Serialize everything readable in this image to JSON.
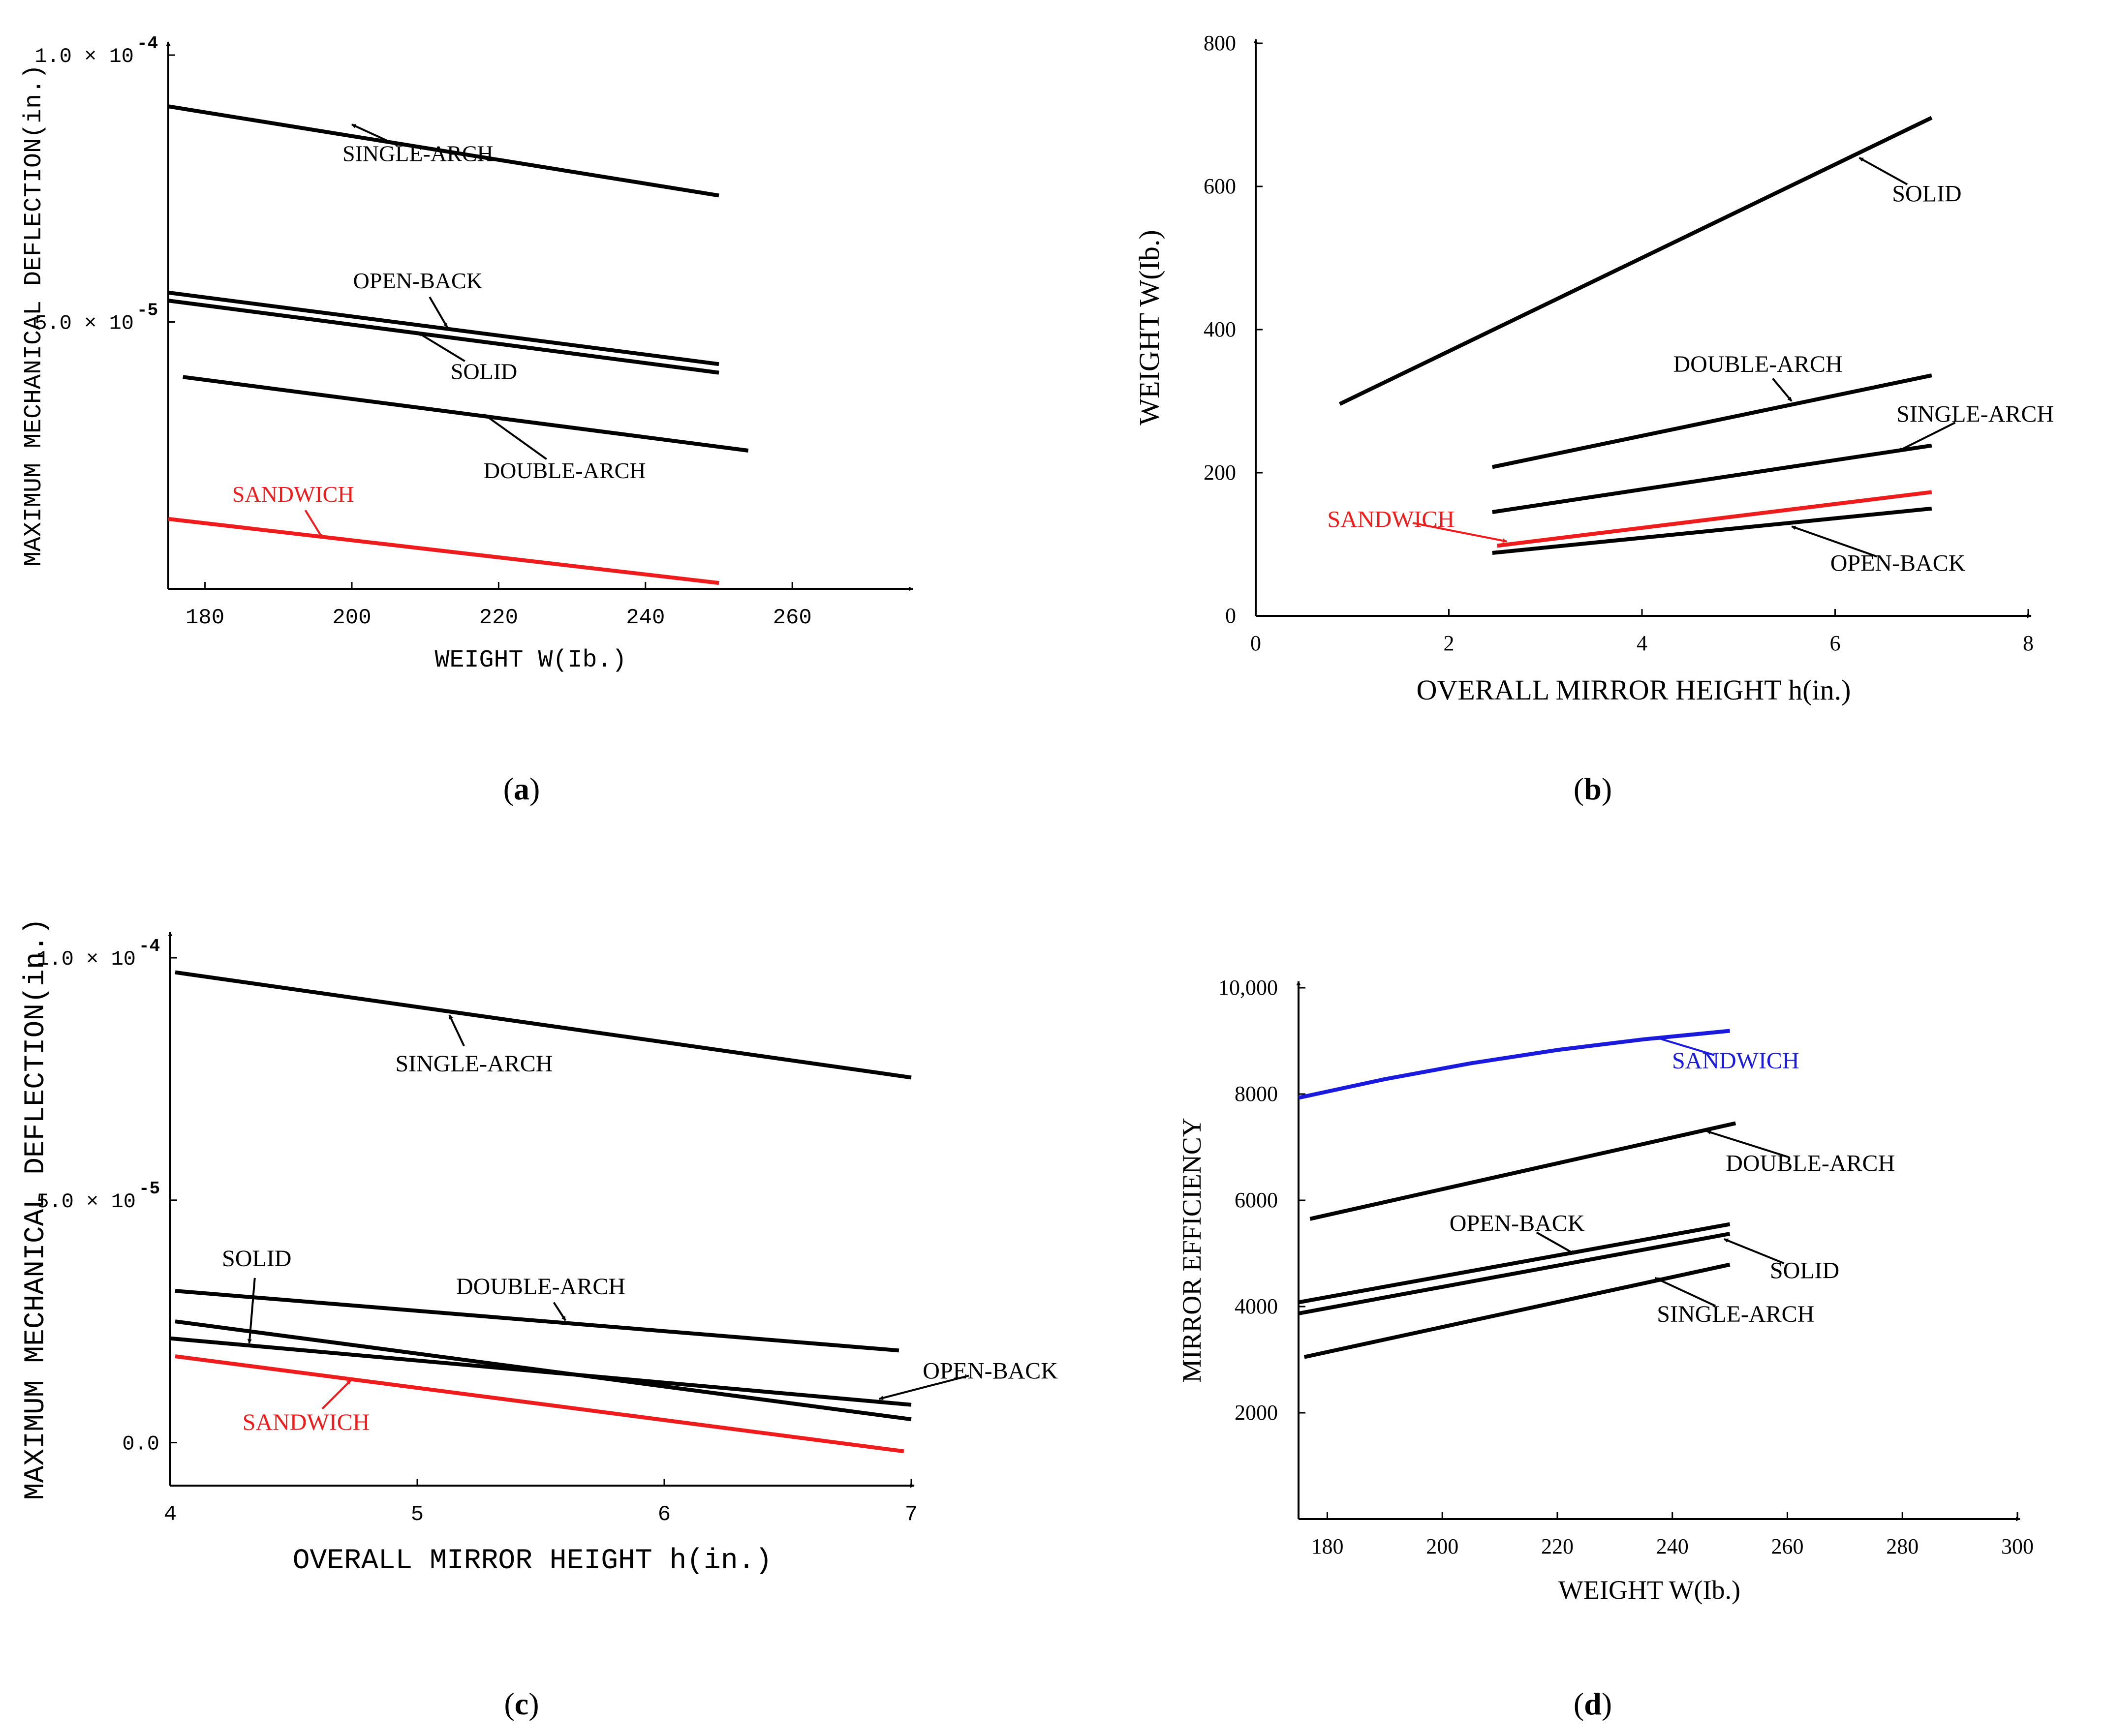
{
  "figure": {
    "panel_labels": [
      "a",
      "b",
      "c",
      "d"
    ]
  },
  "colors": {
    "axis": "#000000",
    "black_series": "#000000",
    "sandwich_red": "#ee1c1c",
    "sandwich_blue": "#1a1adf"
  },
  "chart_data": [
    {
      "id": "a",
      "type": "line",
      "title": "",
      "xlabel": "WEIGHT W(Ib.)",
      "ylabel": "MAXIMUM MECHANICAL DEFLECTION(in.)",
      "xlim": [
        175,
        275
      ],
      "ylim": [
        0.0,
        0.0001
      ],
      "xticks": [
        180,
        200,
        220,
        240,
        260
      ],
      "xtick_labels": [
        "180",
        "200",
        "220",
        "240",
        "260"
      ],
      "yticks": [
        5e-05,
        0.0001
      ],
      "ytick_labels": [
        "5.0 × 10",
        "1.0 × 10"
      ],
      "ytick_exponents": [
        "-5",
        "-4"
      ],
      "series": [
        {
          "name": "SINGLE-ARCH",
          "color": "black",
          "x": [
            175,
            250
          ],
          "y": [
            9.04e-05,
            7.37e-05
          ]
        },
        {
          "name": "OPEN-BACK",
          "color": "black",
          "x": [
            175,
            250
          ],
          "y": [
            5.55e-05,
            4.21e-05
          ]
        },
        {
          "name": "SOLID",
          "color": "black",
          "x": [
            175,
            250
          ],
          "y": [
            5.4e-05,
            4.05e-05
          ]
        },
        {
          "name": "DOUBLE-ARCH",
          "color": "black",
          "x": [
            177,
            254
          ],
          "y": [
            3.97e-05,
            2.59e-05
          ]
        },
        {
          "name": "SANDWICH",
          "color": "red",
          "x": [
            175,
            250
          ],
          "y": [
            1.31e-05,
            1.1e-06
          ]
        }
      ],
      "annotations": [
        {
          "text": "SINGLE-ARCH",
          "series": "SINGLE-ARCH",
          "arrow_x": 200,
          "arrow_y": 8.7e-05,
          "label_x": 209,
          "label_y": 8.16e-05
        },
        {
          "text": "OPEN-BACK",
          "series": "OPEN-BACK",
          "arrow_x": 213,
          "arrow_y": 4.9e-05,
          "label_x": 209,
          "label_y": 5.78e-05
        },
        {
          "text": "SOLID",
          "series": "SOLID",
          "arrow_x": 209,
          "arrow_y": 4.8e-05,
          "label_x": 218,
          "label_y": 4.08e-05
        },
        {
          "text": "DOUBLE-ARCH",
          "series": "DOUBLE-ARCH",
          "arrow_x": 218,
          "arrow_y": 3.27e-05,
          "label_x": 229,
          "label_y": 2.22e-05
        },
        {
          "text": "SANDWICH",
          "series": "SANDWICH",
          "color": "red",
          "arrow_x": 196,
          "arrow_y": 9.5e-06,
          "label_x": 192,
          "label_y": 1.78e-05
        }
      ]
    },
    {
      "id": "b",
      "type": "line",
      "title": "",
      "xlabel": "OVERALL MIRROR HEIGHT h(in.)",
      "ylabel": "WEIGHT W(Ib.)",
      "xlim": [
        0,
        8
      ],
      "ylim": [
        0,
        800
      ],
      "xticks": [
        0,
        2,
        4,
        6,
        8
      ],
      "xtick_labels": [
        "0",
        "2",
        "4",
        "6",
        "8"
      ],
      "yticks": [
        0,
        200,
        400,
        600,
        800
      ],
      "ytick_labels": [
        "0",
        "200",
        "400",
        "600",
        "800"
      ],
      "series": [
        {
          "name": "SOLID",
          "color": "black",
          "x": [
            0.87,
            7.0
          ],
          "y": [
            296,
            696
          ]
        },
        {
          "name": "DOUBLE-ARCH",
          "color": "black",
          "x": [
            2.45,
            7.0
          ],
          "y": [
            208,
            336
          ]
        },
        {
          "name": "SINGLE-ARCH",
          "color": "black",
          "x": [
            2.45,
            7.0
          ],
          "y": [
            145,
            238
          ]
        },
        {
          "name": "SANDWICH",
          "color": "red",
          "x": [
            2.5,
            7.0
          ],
          "y": [
            98,
            173
          ]
        },
        {
          "name": "OPEN-BACK",
          "color": "black",
          "x": [
            2.45,
            7.0
          ],
          "y": [
            88,
            150
          ]
        }
      ],
      "annotations": [
        {
          "text": "SOLID",
          "series": "SOLID",
          "arrow_x": 6.25,
          "arrow_y": 640,
          "label_x": 6.95,
          "label_y": 590
        },
        {
          "text": "DOUBLE-ARCH",
          "series": "DOUBLE-ARCH",
          "arrow_x": 5.55,
          "arrow_y": 300,
          "label_x": 5.2,
          "label_y": 352
        },
        {
          "text": "SINGLE-ARCH",
          "series": "SINGLE-ARCH",
          "arrow_x": 6.65,
          "arrow_y": 230,
          "label_x": 7.45,
          "label_y": 282
        },
        {
          "text": "SANDWICH",
          "series": "SANDWICH",
          "color": "red",
          "arrow_x": 2.6,
          "arrow_y": 104,
          "label_x": 1.4,
          "label_y": 135
        },
        {
          "text": "OPEN-BACK",
          "series": "OPEN-BACK",
          "arrow_x": 5.55,
          "arrow_y": 125,
          "label_x": 6.65,
          "label_y": 74
        }
      ]
    },
    {
      "id": "c",
      "type": "line",
      "title": "",
      "xlabel": "OVERALL MIRROR HEIGHT h(in.)",
      "ylabel": "MAXIMUM MECHANICAL DEFLECTION(in.)",
      "xlim": [
        4,
        7
      ],
      "ylim": [
        -3.8e-06,
        0.0001
      ],
      "xticks": [
        4,
        5,
        6,
        7
      ],
      "xtick_labels": [
        "4",
        "5",
        "6",
        "7"
      ],
      "yticks": [
        0.0,
        5e-05,
        0.0001
      ],
      "ytick_labels": [
        "0.0",
        "5.0 × 10",
        "1.0 × 10"
      ],
      "ytick_exponents": [
        "",
        "-5",
        "-4"
      ],
      "series": [
        {
          "name": "SINGLE-ARCH",
          "color": "black",
          "x": [
            4.02,
            7.0
          ],
          "y": [
            9.7e-05,
            7.53e-05
          ]
        },
        {
          "name": "DOUBLE-ARCH",
          "color": "black",
          "x": [
            4.02,
            6.95
          ],
          "y": [
            3.13e-05,
            1.9e-05
          ]
        },
        {
          "name": "SOLID",
          "color": "black",
          "x": [
            4.02,
            7.0
          ],
          "y": [
            2.5e-05,
            4.8e-06
          ]
        },
        {
          "name": "OPEN-BACK",
          "color": "black",
          "x": [
            4.0,
            7.0
          ],
          "y": [
            2.15e-05,
            7.8e-06
          ]
        },
        {
          "name": "SANDWICH",
          "color": "red",
          "x": [
            4.02,
            6.97
          ],
          "y": [
            1.78e-05,
            -1.8e-06
          ]
        }
      ],
      "annotations": [
        {
          "text": "SINGLE-ARCH",
          "series": "SINGLE-ARCH",
          "arrow_x": 5.13,
          "arrow_y": 8.82e-05,
          "label_x": 5.23,
          "label_y": 7.82e-05
        },
        {
          "text": "DOUBLE-ARCH",
          "series": "DOUBLE-ARCH",
          "arrow_x": 5.6,
          "arrow_y": 2.52e-05,
          "label_x": 5.5,
          "label_y": 3.22e-05
        },
        {
          "text": "SOLID",
          "series": "SOLID",
          "arrow_x": 4.32,
          "arrow_y": 2.05e-05,
          "label_x": 4.35,
          "label_y": 3.8e-05
        },
        {
          "text": "OPEN-BACK",
          "series": "OPEN-BACK",
          "arrow_x": 6.87,
          "arrow_y": 9e-06,
          "label_x": 7.32,
          "label_y": 1.48e-05
        },
        {
          "text": "SANDWICH",
          "series": "SANDWICH",
          "color": "red",
          "arrow_x": 4.73,
          "arrow_y": 1.28e-05,
          "label_x": 4.55,
          "label_y": 4.2e-06
        }
      ]
    },
    {
      "id": "d",
      "type": "line",
      "title": "",
      "xlabel": "WEIGHT W(Ib.)",
      "ylabel": "MIRROR EFFICIENCY",
      "xlim": [
        175,
        300
      ],
      "ylim": [
        0,
        10000
      ],
      "xticks": [
        180,
        200,
        220,
        240,
        260,
        280,
        300
      ],
      "xtick_labels": [
        "180",
        "200",
        "220",
        "240",
        "260",
        "280",
        "300"
      ],
      "yticks": [
        2000,
        4000,
        6000,
        8000,
        10000
      ],
      "ytick_labels": [
        "2000",
        "4000",
        "6000",
        "8000",
        "10,000"
      ],
      "series": [
        {
          "name": "SANDWICH",
          "color": "blue",
          "x": [
            175,
            190,
            205,
            220,
            235,
            250
          ],
          "y": [
            7930,
            8280,
            8580,
            8830,
            9030,
            9190
          ]
        },
        {
          "name": "DOUBLE-ARCH",
          "color": "black",
          "x": [
            177,
            251
          ],
          "y": [
            5650,
            7450
          ]
        },
        {
          "name": "OPEN-BACK",
          "color": "black",
          "x": [
            175,
            250
          ],
          "y": [
            4080,
            5550
          ]
        },
        {
          "name": "SOLID",
          "color": "black",
          "x": [
            175,
            250
          ],
          "y": [
            3870,
            5370
          ]
        },
        {
          "name": "SINGLE-ARCH",
          "color": "black",
          "x": [
            176,
            250
          ],
          "y": [
            3050,
            4790
          ]
        }
      ],
      "annotations": [
        {
          "text": "SANDWICH",
          "series": "SANDWICH",
          "color": "blue",
          "arrow_x": 237,
          "arrow_y": 9070,
          "label_x": 251,
          "label_y": 8630
        },
        {
          "text": "DOUBLE-ARCH",
          "series": "DOUBLE-ARCH",
          "arrow_x": 246,
          "arrow_y": 7300,
          "label_x": 264,
          "label_y": 6700
        },
        {
          "text": "OPEN-BACK",
          "series": "OPEN-BACK",
          "arrow_x": 223,
          "arrow_y": 4990,
          "label_x": 213,
          "label_y": 5570
        },
        {
          "text": "SOLID",
          "series": "SOLID",
          "arrow_x": 249,
          "arrow_y": 5270,
          "label_x": 263,
          "label_y": 4680
        },
        {
          "text": "SINGLE-ARCH",
          "series": "SINGLE-ARCH",
          "arrow_x": 237,
          "arrow_y": 4540,
          "label_x": 251,
          "label_y": 3860
        }
      ]
    }
  ]
}
